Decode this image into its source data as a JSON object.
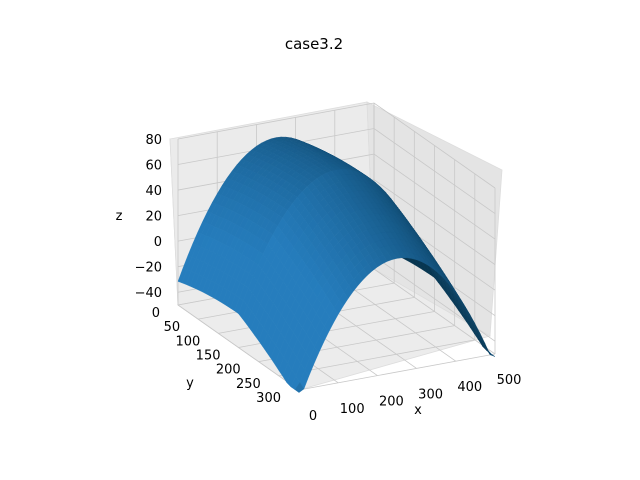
{
  "chart_data": {
    "type": "surface3d",
    "title": "case3.2",
    "xlabel": "x",
    "ylabel": "y",
    "zlabel": "z",
    "xlim": [
      0,
      500
    ],
    "ylim": [
      0,
      300
    ],
    "zlim": [
      -50,
      80
    ],
    "xticks": [
      "0",
      "100",
      "200",
      "300",
      "400",
      "500"
    ],
    "yticks": [
      "0",
      "50",
      "100",
      "150",
      "200",
      "250",
      "300"
    ],
    "zticks": [
      "80",
      "60",
      "40",
      "20",
      "0",
      "−20",
      "−40"
    ],
    "grid": true,
    "surface_color": "#1f77b4",
    "surface": {
      "shape": "paraboloid-dome",
      "peak_z": 75,
      "center_x": 250,
      "center_y": 150,
      "z_at_x0_y0": -22,
      "z_at_x0_y300": -50,
      "z_at_x500_y0": -25,
      "z_at_x500_y300": -48
    }
  }
}
